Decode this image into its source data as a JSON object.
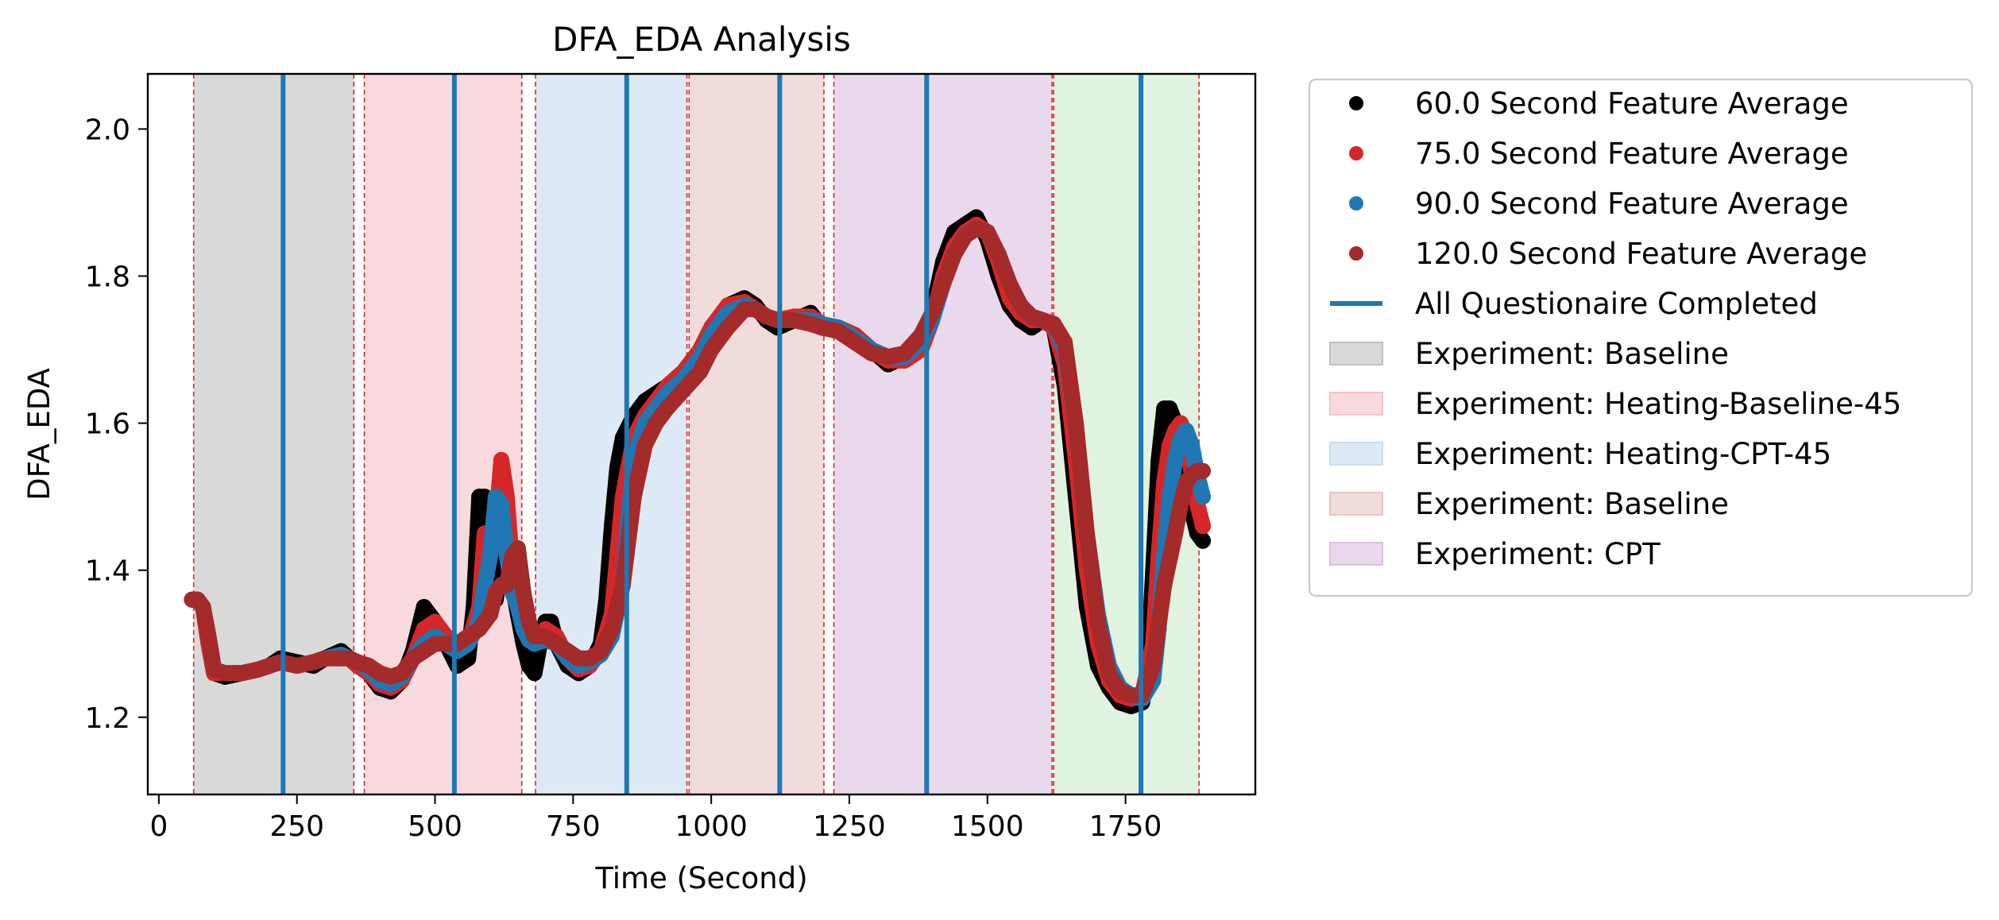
{
  "chart_data": {
    "type": "line",
    "title": "DFA_EDA Analysis",
    "xlabel": "Time (Second)",
    "ylabel": "DFA_EDA",
    "xlim": [
      -20,
      1985
    ],
    "ylim": [
      1.095,
      2.075
    ],
    "xticks": [
      0,
      250,
      500,
      750,
      1000,
      1250,
      1500,
      1750
    ],
    "xtick_labels": [
      "0",
      "250",
      "500",
      "750",
      "1000",
      "1250",
      "1500",
      "1750"
    ],
    "yticks": [
      1.2,
      1.4,
      1.6,
      1.8,
      2.0
    ],
    "ytick_labels": [
      "1.2",
      "1.4",
      "1.6",
      "1.8",
      "2.0"
    ],
    "grid": false,
    "legend_position": "outside-right",
    "phases": [
      {
        "label": "Experiment: Baseline",
        "start": 63,
        "end": 353,
        "color": "#c0c0c0",
        "alpha": 0.6
      },
      {
        "label": "Experiment: Heating-Baseline-45",
        "start": 372,
        "end": 657,
        "color": "#f4c2c8",
        "alpha": 0.6
      },
      {
        "label": "Experiment: Heating-CPT-45",
        "start": 682,
        "end": 956,
        "color": "#c7dcee",
        "alpha": 0.6
      },
      {
        "label": "Experiment: Baseline",
        "start": 960,
        "end": 1204,
        "color": "#e7c4c4",
        "alpha": 0.6
      },
      {
        "label": "Experiment: CPT",
        "start": 1222,
        "end": 1617,
        "color": "#dcbfe0",
        "alpha": 0.6
      },
      {
        "label": "",
        "start": 1620,
        "end": 1883,
        "color": "#cce9cc",
        "alpha": 0.6
      }
    ],
    "phase_boundaries": [
      63,
      353,
      372,
      657,
      682,
      956,
      960,
      1204,
      1222,
      1617,
      1620,
      1883
    ],
    "questionnaire_times": [
      225,
      535,
      847,
      1124,
      1390,
      1778
    ],
    "series": [
      {
        "name": "60.0 Second Feature Average",
        "color": "#000000",
        "x": [
          60,
          70,
          80,
          90,
          100,
          120,
          150,
          180,
          200,
          220,
          250,
          280,
          300,
          330,
          345,
          360,
          380,
          400,
          420,
          440,
          460,
          470,
          480,
          500,
          520,
          540,
          560,
          570,
          580,
          590,
          600,
          610,
          620,
          630,
          640,
          650,
          660,
          670,
          680,
          690,
          700,
          710,
          720,
          740,
          760,
          780,
          800,
          810,
          820,
          830,
          840,
          860,
          880,
          900,
          920,
          950,
          980,
          1000,
          1030,
          1060,
          1080,
          1100,
          1120,
          1150,
          1180,
          1200,
          1230,
          1260,
          1290,
          1320,
          1350,
          1380,
          1400,
          1420,
          1440,
          1460,
          1480,
          1500,
          1520,
          1540,
          1560,
          1580,
          1600,
          1620,
          1640,
          1660,
          1680,
          1700,
          1720,
          1740,
          1760,
          1780,
          1790,
          1800,
          1810,
          1820,
          1830,
          1840,
          1850,
          1860,
          1870,
          1880,
          1890
        ],
        "values": [
          1.36,
          1.36,
          1.35,
          1.3,
          1.26,
          1.255,
          1.26,
          1.265,
          1.27,
          1.28,
          1.275,
          1.27,
          1.28,
          1.29,
          1.28,
          1.27,
          1.26,
          1.24,
          1.235,
          1.25,
          1.29,
          1.32,
          1.35,
          1.33,
          1.3,
          1.27,
          1.28,
          1.35,
          1.5,
          1.5,
          1.38,
          1.36,
          1.41,
          1.43,
          1.38,
          1.34,
          1.3,
          1.27,
          1.26,
          1.3,
          1.33,
          1.33,
          1.3,
          1.27,
          1.26,
          1.27,
          1.3,
          1.36,
          1.46,
          1.54,
          1.58,
          1.61,
          1.63,
          1.64,
          1.65,
          1.67,
          1.7,
          1.73,
          1.76,
          1.77,
          1.76,
          1.74,
          1.73,
          1.74,
          1.75,
          1.73,
          1.73,
          1.72,
          1.7,
          1.68,
          1.69,
          1.7,
          1.75,
          1.82,
          1.86,
          1.87,
          1.88,
          1.85,
          1.8,
          1.76,
          1.74,
          1.73,
          1.74,
          1.73,
          1.65,
          1.5,
          1.35,
          1.27,
          1.24,
          1.22,
          1.215,
          1.22,
          1.26,
          1.4,
          1.55,
          1.62,
          1.62,
          1.6,
          1.55,
          1.5,
          1.48,
          1.45,
          1.44
        ]
      },
      {
        "name": "75.0 Second Feature Average",
        "color": "#d62728",
        "x": [
          60,
          70,
          80,
          90,
          100,
          120,
          150,
          180,
          200,
          220,
          250,
          280,
          300,
          330,
          345,
          360,
          380,
          400,
          420,
          440,
          460,
          480,
          500,
          520,
          540,
          560,
          580,
          590,
          600,
          610,
          620,
          630,
          640,
          650,
          660,
          670,
          680,
          690,
          700,
          720,
          740,
          760,
          780,
          800,
          820,
          830,
          840,
          860,
          880,
          900,
          920,
          950,
          980,
          1000,
          1030,
          1060,
          1080,
          1100,
          1120,
          1150,
          1180,
          1200,
          1230,
          1260,
          1290,
          1320,
          1350,
          1380,
          1400,
          1420,
          1440,
          1460,
          1480,
          1500,
          1520,
          1540,
          1560,
          1580,
          1600,
          1620,
          1640,
          1660,
          1680,
          1700,
          1720,
          1740,
          1760,
          1780,
          1800,
          1810,
          1820,
          1830,
          1840,
          1850,
          1860,
          1870,
          1880,
          1890
        ],
        "values": [
          1.36,
          1.36,
          1.35,
          1.3,
          1.26,
          1.26,
          1.26,
          1.265,
          1.27,
          1.275,
          1.27,
          1.275,
          1.28,
          1.285,
          1.28,
          1.27,
          1.26,
          1.245,
          1.24,
          1.25,
          1.28,
          1.32,
          1.33,
          1.31,
          1.29,
          1.3,
          1.35,
          1.45,
          1.42,
          1.46,
          1.55,
          1.5,
          1.4,
          1.38,
          1.34,
          1.31,
          1.3,
          1.31,
          1.32,
          1.31,
          1.28,
          1.265,
          1.27,
          1.29,
          1.34,
          1.42,
          1.5,
          1.58,
          1.61,
          1.63,
          1.65,
          1.67,
          1.7,
          1.73,
          1.76,
          1.765,
          1.755,
          1.745,
          1.74,
          1.745,
          1.745,
          1.735,
          1.73,
          1.72,
          1.7,
          1.685,
          1.685,
          1.7,
          1.74,
          1.8,
          1.84,
          1.86,
          1.87,
          1.86,
          1.82,
          1.77,
          1.75,
          1.74,
          1.74,
          1.73,
          1.68,
          1.55,
          1.4,
          1.3,
          1.25,
          1.23,
          1.225,
          1.23,
          1.3,
          1.42,
          1.52,
          1.57,
          1.59,
          1.6,
          1.58,
          1.53,
          1.49,
          1.46
        ]
      },
      {
        "name": "90.0 Second Feature Average",
        "color": "#1f77b4",
        "x": [
          60,
          70,
          80,
          90,
          100,
          120,
          150,
          180,
          200,
          220,
          250,
          280,
          300,
          330,
          345,
          360,
          380,
          400,
          420,
          440,
          460,
          480,
          500,
          520,
          540,
          560,
          580,
          590,
          600,
          610,
          620,
          630,
          640,
          650,
          660,
          670,
          680,
          700,
          720,
          740,
          760,
          780,
          800,
          820,
          840,
          850,
          860,
          880,
          900,
          920,
          950,
          980,
          1000,
          1030,
          1060,
          1080,
          1100,
          1120,
          1150,
          1180,
          1200,
          1230,
          1260,
          1290,
          1320,
          1350,
          1380,
          1400,
          1420,
          1440,
          1460,
          1480,
          1500,
          1520,
          1540,
          1560,
          1580,
          1600,
          1620,
          1640,
          1660,
          1680,
          1700,
          1720,
          1740,
          1760,
          1780,
          1800,
          1810,
          1820,
          1830,
          1840,
          1850,
          1860,
          1870,
          1880,
          1890
        ],
        "values": [
          1.36,
          1.36,
          1.35,
          1.31,
          1.265,
          1.26,
          1.26,
          1.265,
          1.27,
          1.275,
          1.27,
          1.275,
          1.28,
          1.285,
          1.28,
          1.275,
          1.265,
          1.25,
          1.245,
          1.255,
          1.28,
          1.3,
          1.31,
          1.3,
          1.29,
          1.3,
          1.33,
          1.38,
          1.42,
          1.5,
          1.49,
          1.42,
          1.37,
          1.35,
          1.32,
          1.305,
          1.3,
          1.305,
          1.3,
          1.28,
          1.27,
          1.275,
          1.285,
          1.31,
          1.38,
          1.47,
          1.55,
          1.6,
          1.62,
          1.64,
          1.66,
          1.69,
          1.72,
          1.75,
          1.76,
          1.755,
          1.745,
          1.74,
          1.74,
          1.74,
          1.735,
          1.73,
          1.715,
          1.7,
          1.69,
          1.69,
          1.71,
          1.74,
          1.79,
          1.83,
          1.855,
          1.865,
          1.86,
          1.83,
          1.79,
          1.76,
          1.745,
          1.74,
          1.735,
          1.7,
          1.6,
          1.45,
          1.34,
          1.27,
          1.24,
          1.23,
          1.225,
          1.25,
          1.32,
          1.42,
          1.5,
          1.55,
          1.58,
          1.59,
          1.57,
          1.53,
          1.5
        ]
      },
      {
        "name": "120.0 Second Feature Average",
        "color": "#a52a2a",
        "x": [
          60,
          70,
          80,
          90,
          100,
          120,
          150,
          180,
          200,
          220,
          250,
          280,
          300,
          330,
          345,
          360,
          380,
          400,
          420,
          440,
          460,
          480,
          500,
          520,
          540,
          560,
          580,
          600,
          610,
          620,
          630,
          640,
          650,
          660,
          670,
          680,
          700,
          720,
          740,
          760,
          780,
          800,
          820,
          840,
          860,
          880,
          900,
          920,
          950,
          980,
          1000,
          1030,
          1060,
          1080,
          1100,
          1120,
          1150,
          1180,
          1200,
          1230,
          1260,
          1290,
          1320,
          1350,
          1380,
          1400,
          1420,
          1440,
          1460,
          1480,
          1500,
          1520,
          1540,
          1560,
          1580,
          1600,
          1620,
          1640,
          1660,
          1680,
          1700,
          1720,
          1740,
          1760,
          1780,
          1800,
          1820,
          1840,
          1850,
          1860,
          1870,
          1880,
          1890
        ],
        "values": [
          1.36,
          1.36,
          1.35,
          1.31,
          1.265,
          1.26,
          1.26,
          1.265,
          1.27,
          1.275,
          1.27,
          1.275,
          1.28,
          1.28,
          1.28,
          1.275,
          1.27,
          1.26,
          1.255,
          1.26,
          1.28,
          1.29,
          1.3,
          1.3,
          1.3,
          1.31,
          1.32,
          1.34,
          1.37,
          1.38,
          1.38,
          1.42,
          1.43,
          1.37,
          1.33,
          1.31,
          1.31,
          1.3,
          1.29,
          1.28,
          1.28,
          1.29,
          1.32,
          1.38,
          1.5,
          1.57,
          1.6,
          1.62,
          1.645,
          1.67,
          1.7,
          1.73,
          1.755,
          1.755,
          1.745,
          1.74,
          1.74,
          1.735,
          1.73,
          1.725,
          1.71,
          1.695,
          1.69,
          1.695,
          1.72,
          1.75,
          1.79,
          1.83,
          1.855,
          1.865,
          1.86,
          1.83,
          1.79,
          1.76,
          1.745,
          1.74,
          1.735,
          1.71,
          1.6,
          1.45,
          1.33,
          1.26,
          1.235,
          1.23,
          1.23,
          1.27,
          1.38,
          1.45,
          1.49,
          1.52,
          1.53,
          1.535,
          1.535
        ]
      }
    ],
    "legend": [
      {
        "label": "60.0 Second Feature Average",
        "kind": "marker",
        "color": "#000000"
      },
      {
        "label": "75.0 Second Feature Average",
        "kind": "marker",
        "color": "#d62728"
      },
      {
        "label": "90.0 Second Feature Average",
        "kind": "marker",
        "color": "#1f77b4"
      },
      {
        "label": "120.0 Second Feature Average",
        "kind": "marker",
        "color": "#a52a2a"
      },
      {
        "label": "All Questionaire Completed",
        "kind": "line",
        "color": "#1f77b4"
      },
      {
        "label": "Experiment: Baseline",
        "kind": "patch",
        "color": "#c0c0c0"
      },
      {
        "label": "Experiment: Heating-Baseline-45",
        "kind": "patch",
        "color": "#f4c2c8"
      },
      {
        "label": "Experiment: Heating-CPT-45",
        "kind": "patch",
        "color": "#c7dcee"
      },
      {
        "label": "Experiment: Baseline",
        "kind": "patch",
        "color": "#e7c4c4"
      },
      {
        "label": "Experiment: CPT",
        "kind": "patch",
        "color": "#dcbfe0"
      }
    ],
    "colors": {
      "questionnaire_line": "#1f77b4",
      "phase_boundary": "#d62728"
    }
  }
}
